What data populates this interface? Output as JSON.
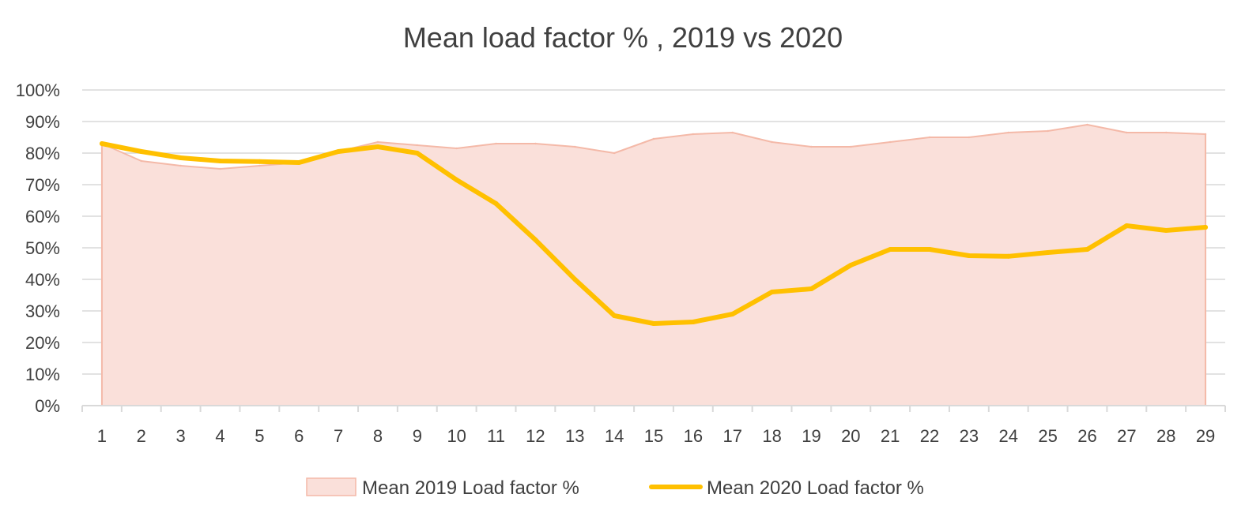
{
  "chart_data": {
    "type": "area",
    "title": "Mean load factor % , 2019 vs 2020",
    "xlabel": "",
    "ylabel": "",
    "x": [
      1,
      2,
      3,
      4,
      5,
      6,
      7,
      8,
      9,
      10,
      11,
      12,
      13,
      14,
      15,
      16,
      17,
      18,
      19,
      20,
      21,
      22,
      23,
      24,
      25,
      26,
      27,
      28,
      29
    ],
    "ylim": [
      0,
      100
    ],
    "y_ticks": [
      "0%",
      "10%",
      "20%",
      "30%",
      "40%",
      "50%",
      "60%",
      "70%",
      "80%",
      "90%",
      "100%"
    ],
    "grid": true,
    "legend_position": "bottom",
    "series": [
      {
        "name": "Mean 2019 Load factor %",
        "kind": "area",
        "color": "#f4b9a8",
        "fill": "#fae0da",
        "values": [
          83,
          77.5,
          76,
          75,
          76,
          77,
          80.5,
          83.5,
          82.5,
          81.5,
          83,
          83,
          82,
          80,
          84.5,
          86,
          86.5,
          83.5,
          82,
          82,
          83.5,
          85,
          85,
          86.5,
          87,
          89,
          86.5,
          86.5,
          86
        ]
      },
      {
        "name": "Mean 2020 Load factor %",
        "kind": "line",
        "color": "#ffc000",
        "values": [
          83,
          80.5,
          78.5,
          77.5,
          77.3,
          77,
          80.5,
          82,
          80,
          71.5,
          64,
          52.5,
          40,
          28.5,
          26,
          26.5,
          29,
          36,
          37,
          44.5,
          49.5,
          49.5,
          47.5,
          47.3,
          48.5,
          49.5,
          57,
          55.5,
          56.5
        ]
      }
    ]
  }
}
